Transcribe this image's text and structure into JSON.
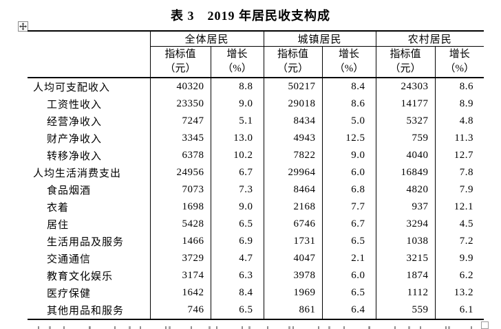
{
  "doc": {
    "table_caption": "表 3　2019 年居民收支构成"
  },
  "table": {
    "groups": [
      {
        "label": "全体居民"
      },
      {
        "label": "城镇居民"
      },
      {
        "label": "农村居民"
      }
    ],
    "subheaders": {
      "indicator_line1": "指标值",
      "indicator_line2": "（元）",
      "growth_line1": "增长",
      "growth_line2": "（%）"
    },
    "rows": [
      {
        "label": "人均可支配收入",
        "indent": 0,
        "cells": [
          "40320",
          "8.8",
          "50217",
          "8.4",
          "24303",
          "8.6"
        ]
      },
      {
        "label": "工资性收入",
        "indent": 1,
        "cells": [
          "23350",
          "9.0",
          "29018",
          "8.6",
          "14177",
          "8.9"
        ]
      },
      {
        "label": "经营净收入",
        "indent": 1,
        "cells": [
          "7247",
          "5.1",
          "8434",
          "5.0",
          "5327",
          "4.8"
        ]
      },
      {
        "label": "财产净收入",
        "indent": 1,
        "cells": [
          "3345",
          "13.0",
          "4943",
          "12.5",
          "759",
          "11.3"
        ]
      },
      {
        "label": "转移净收入",
        "indent": 1,
        "cells": [
          "6378",
          "10.2",
          "7822",
          "9.0",
          "4040",
          "12.7"
        ]
      },
      {
        "label": "人均生活消费支出",
        "indent": 0,
        "cells": [
          "24956",
          "6.7",
          "29964",
          "6.0",
          "16849",
          "7.8"
        ]
      },
      {
        "label": "食品烟酒",
        "indent": 1,
        "cells": [
          "7073",
          "7.3",
          "8464",
          "6.8",
          "4820",
          "7.9"
        ]
      },
      {
        "label": "衣着",
        "indent": 1,
        "cells": [
          "1698",
          "9.0",
          "2168",
          "7.7",
          "937",
          "12.1"
        ]
      },
      {
        "label": "居住",
        "indent": 1,
        "cells": [
          "5428",
          "6.5",
          "6746",
          "6.7",
          "3294",
          "4.5"
        ]
      },
      {
        "label": "生活用品及服务",
        "indent": 1,
        "cells": [
          "1466",
          "6.9",
          "1731",
          "6.5",
          "1038",
          "7.2"
        ]
      },
      {
        "label": "交通通信",
        "indent": 1,
        "cells": [
          "3729",
          "4.7",
          "4047",
          "2.1",
          "3215",
          "9.9"
        ]
      },
      {
        "label": "教育文化娱乐",
        "indent": 1,
        "cells": [
          "3174",
          "6.3",
          "3978",
          "6.0",
          "1874",
          "6.2"
        ]
      },
      {
        "label": "医疗保健",
        "indent": 1,
        "cells": [
          "1642",
          "8.4",
          "1969",
          "6.5",
          "1112",
          "13.2"
        ]
      },
      {
        "label": "其他用品和服务",
        "indent": 1,
        "cells": [
          "746",
          "6.5",
          "861",
          "6.4",
          "559",
          "6.1"
        ]
      }
    ]
  },
  "icons": {
    "move_handle": "table-move-handle",
    "resize_handle": "table-resize-handle"
  },
  "colors": {
    "border": "#000000",
    "handle_border": "#9c9c9c",
    "clipped_text": "#8f8f8f"
  }
}
